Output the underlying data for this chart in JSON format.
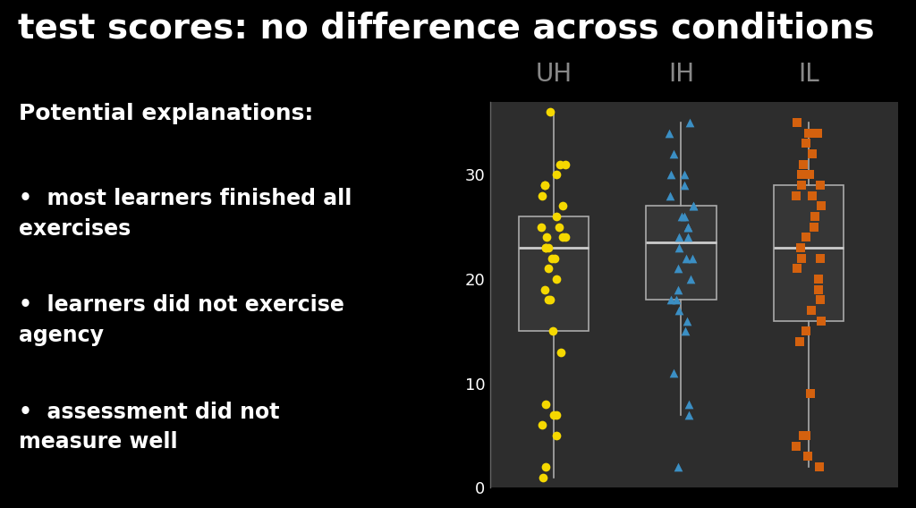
{
  "title": "test scores: no difference across conditions",
  "background_color": "#000000",
  "plot_bg_color": "#2d2d2d",
  "text_color": "#ffffff",
  "conditions": [
    "UH",
    "IH",
    "IL"
  ],
  "condition_colors": [
    "#f5d800",
    "#3b8fc4",
    "#d4610e"
  ],
  "condition_label_color": "#888888",
  "left_text_header": "Potential explanations:",
  "left_text_bullets": [
    "most learners finished all\nexercises",
    "learners did not exercise\nagency",
    "assessment did not\nmeasure well"
  ],
  "UH_data": [
    36,
    31,
    31,
    30,
    29,
    29,
    28,
    27,
    26,
    25,
    25,
    24,
    24,
    24,
    23,
    23,
    23,
    22,
    22,
    21,
    20,
    19,
    18,
    18,
    15,
    13,
    8,
    7,
    7,
    6,
    5,
    2,
    1
  ],
  "IH_data": [
    35,
    34,
    32,
    30,
    30,
    29,
    28,
    27,
    27,
    26,
    26,
    25,
    25,
    24,
    24,
    23,
    22,
    22,
    21,
    20,
    19,
    18,
    18,
    17,
    16,
    15,
    11,
    8,
    7,
    2
  ],
  "IL_data": [
    35,
    34,
    34,
    33,
    32,
    31,
    30,
    30,
    29,
    29,
    28,
    28,
    27,
    26,
    25,
    24,
    23,
    22,
    22,
    21,
    20,
    19,
    18,
    17,
    16,
    15,
    14,
    9,
    5,
    5,
    4,
    3,
    2
  ],
  "ylim": [
    0,
    37
  ],
  "yticks": [
    0,
    10,
    20,
    30
  ],
  "box_width": 0.55,
  "marker_shapes": [
    "o",
    "^",
    "s"
  ],
  "marker_size": 7,
  "box_facecolor": "#363636",
  "box_edgecolor": "#aaaaaa",
  "median_linecolor": "#cccccc",
  "whisker_color": "#aaaaaa",
  "jitter_seed": 42,
  "title_fontsize": 28,
  "axis_tick_fontsize": 13,
  "condition_label_fontsize": 20,
  "header_fontsize": 18,
  "bullet_fontsize": 17
}
